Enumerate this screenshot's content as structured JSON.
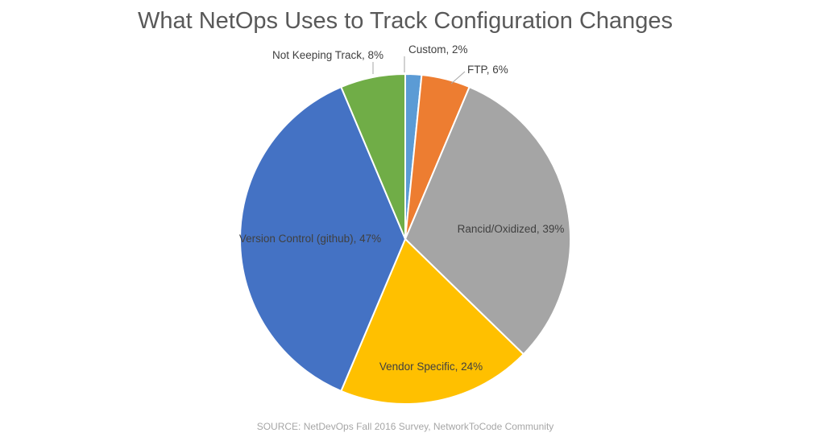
{
  "chart_data": {
    "type": "pie",
    "title": "What NetOps Uses to Track Configuration Changes",
    "slices": [
      {
        "label": "Custom, 2%",
        "value": 2,
        "color": "#5b9bd5"
      },
      {
        "label": "FTP, 6%",
        "value": 6,
        "color": "#ed7d31"
      },
      {
        "label": "Rancid/Oxidized, 39%",
        "value": 39,
        "color": "#a5a5a5"
      },
      {
        "label": "Vendor Specific, 24%",
        "value": 24,
        "color": "#ffc000"
      },
      {
        "label": "Version Control (github), 47%",
        "value": 47,
        "color": "#4472c4"
      },
      {
        "label": "Not Keeping Track, 8%",
        "value": 8,
        "color": "#70ad47"
      }
    ],
    "legend": "none",
    "start_angle": "12 o'clock, clockwise"
  },
  "footer": {
    "source": "SOURCE: NetDevOps Fall 2016 Survey, NetworkToCode Community"
  }
}
